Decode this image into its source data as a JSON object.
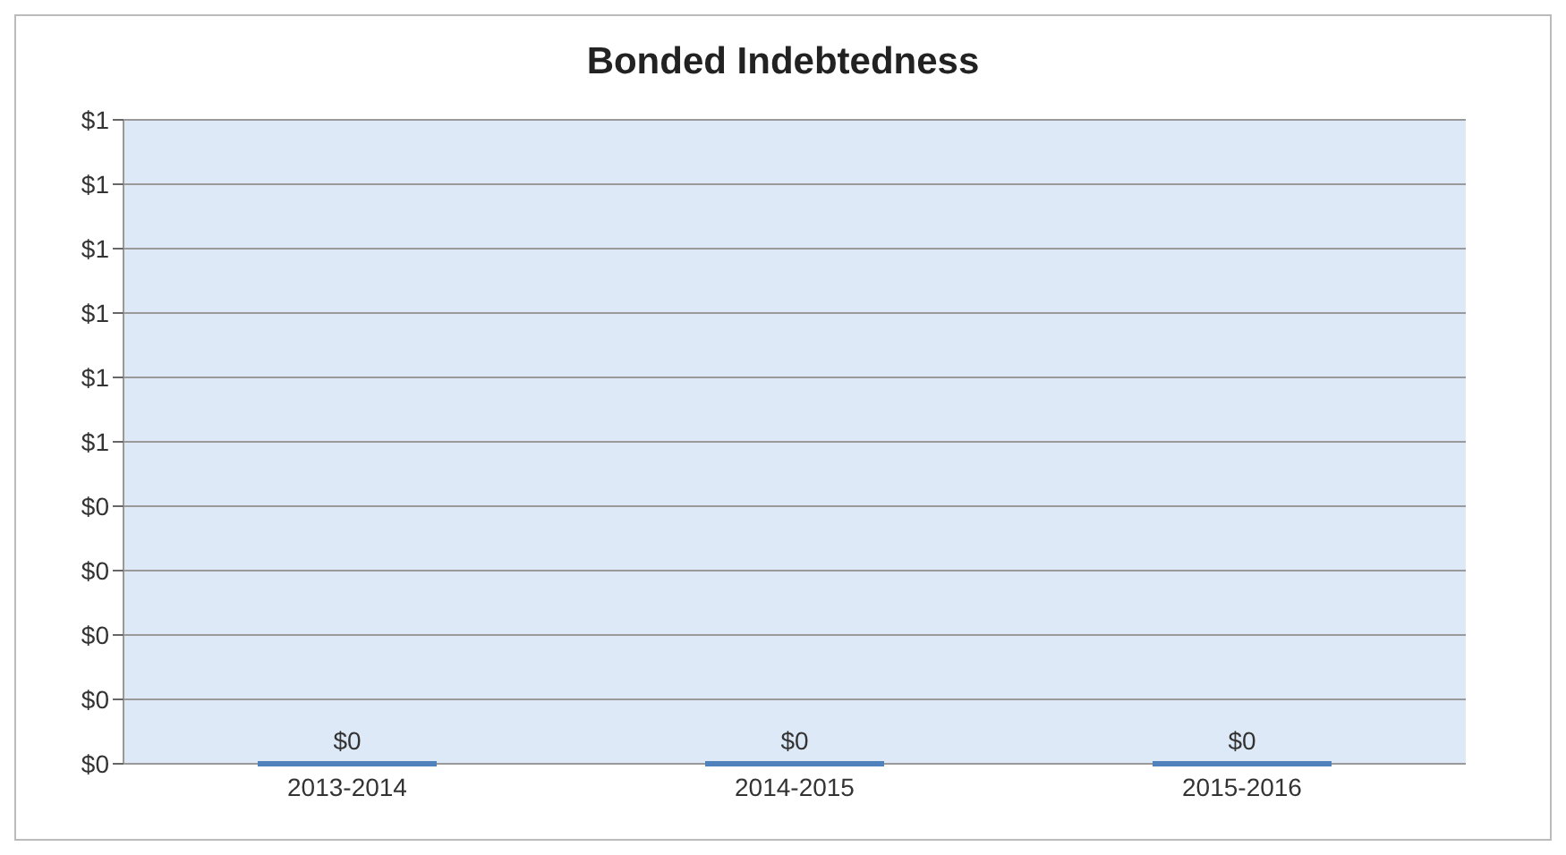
{
  "chart_data": {
    "type": "bar",
    "title": "Bonded Indebtedness",
    "categories": [
      "2013-2014",
      "2014-2015",
      "2015-2016"
    ],
    "values": [
      0,
      0,
      0
    ],
    "color": "#4f81bd",
    "value_labels": [
      "$0",
      "$0",
      "$0"
    ],
    "ylim": [
      0,
      1
    ],
    "yticks": [
      {
        "value": 0,
        "label": "$0"
      },
      {
        "value": 0.1,
        "label": "$0"
      },
      {
        "value": 0.2,
        "label": "$0"
      },
      {
        "value": 0.3,
        "label": "$0"
      },
      {
        "value": 0.4,
        "label": "$0"
      },
      {
        "value": 0.5,
        "label": "$1"
      },
      {
        "value": 0.6,
        "label": "$1"
      },
      {
        "value": 0.7,
        "label": "$1"
      },
      {
        "value": 0.8,
        "label": "$1"
      },
      {
        "value": 0.9,
        "label": "$1"
      },
      {
        "value": 1,
        "label": "$1"
      }
    ],
    "grid": "y"
  }
}
